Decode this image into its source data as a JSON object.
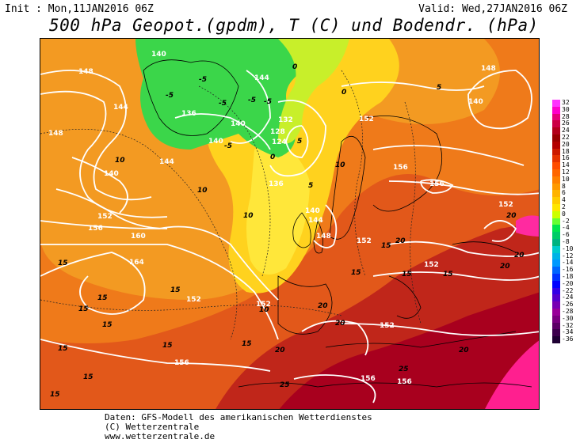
{
  "header": {
    "init": "Init : Mon,11JAN2016 06Z",
    "valid": "Valid: Wed,27JAN2016 06Z",
    "title": "500 hPa Geopot.(gpdm), T (C) und Bodendr. (hPa)"
  },
  "legend": {
    "ticks": [
      "32",
      "30",
      "28",
      "26",
      "24",
      "22",
      "20",
      "18",
      "16",
      "14",
      "12",
      "10",
      "8",
      "6",
      "4",
      "2",
      "0",
      "-2",
      "-4",
      "-6",
      "-8",
      "-10",
      "-12",
      "-14",
      "-16",
      "-18",
      "-20",
      "-22",
      "-24",
      "-26",
      "-28",
      "-30",
      "-32",
      "-34",
      "-36"
    ],
    "colors": [
      "#ff33ff",
      "#ff00cc",
      "#e6007a",
      "#cc0044",
      "#b3001a",
      "#990000",
      "#b30000",
      "#cc1a00",
      "#e63300",
      "#ff4d00",
      "#ff6600",
      "#ff8000",
      "#ff9900",
      "#ffb300",
      "#ffcc00",
      "#ffe600",
      "#ccff00",
      "#66ff33",
      "#00e64d",
      "#00cc66",
      "#00b380",
      "#00cccc",
      "#00b3e6",
      "#0099ff",
      "#0066ff",
      "#0033ff",
      "#0000ff",
      "#3300e6",
      "#5500cc",
      "#7700b3",
      "#990099",
      "#7a0080",
      "#5c0066",
      "#3d004d",
      "#1f0033"
    ]
  },
  "map": {
    "geopotential_labels": [
      "148",
      "144",
      "140",
      "136",
      "140",
      "144",
      "132",
      "128",
      "124",
      "136",
      "144",
      "140",
      "148",
      "152",
      "156",
      "160",
      "164",
      "152",
      "152",
      "152",
      "156",
      "156",
      "152",
      "152",
      "156",
      "152",
      "148",
      "140",
      "144",
      "140",
      "152",
      "156",
      "156",
      "140",
      "148"
    ],
    "temperature_labels": [
      "-5",
      "-5",
      "-5",
      "-5",
      "-5",
      "-5",
      "0",
      "0",
      "0",
      "5",
      "5",
      "5",
      "10",
      "10",
      "10",
      "10",
      "10",
      "15",
      "15",
      "15",
      "15",
      "15",
      "15",
      "15",
      "15",
      "15",
      "15",
      "15",
      "15",
      "15",
      "15",
      "20",
      "20",
      "20",
      "20",
      "20",
      "20",
      "20",
      "20",
      "25",
      "25"
    ]
  },
  "footer": {
    "line1": "Daten: GFS-Modell des amerikanischen Wetterdienstes",
    "line2": "(C) Wetterzentrale",
    "line3": "www.wetterzentrale.de"
  }
}
